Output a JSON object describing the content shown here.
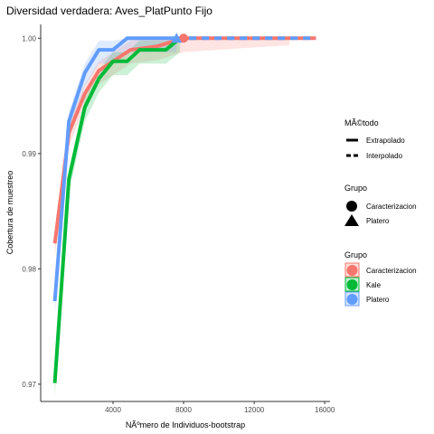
{
  "chart_data": {
    "type": "line",
    "title": "Diversidad verdadera: Aves_PlatPunto Fijo",
    "xlabel": "NÃºmero de Individuos-bootstrap",
    "ylabel": "Cobertura de muestreo",
    "xlim": [
      -100,
      16300
    ],
    "ylim": [
      0.9685,
      1.0012
    ],
    "xticks": [
      4000,
      8000,
      12000,
      16000
    ],
    "xtick_labels": [
      "4000",
      "8000",
      "12000",
      "16000"
    ],
    "yticks": [
      0.97,
      0.98,
      0.99,
      1.0
    ],
    "ytick_labels": [
      "0.97",
      "0.98",
      "0.99",
      "1.00"
    ],
    "grid": false,
    "legend_position": "right",
    "series": [
      {
        "name": "Caracterizacion",
        "color": "#F8766D",
        "ref_size": 8000,
        "ribbon_extra": 6000,
        "marker": "circle",
        "ref_point": [
          8000,
          1.0
        ],
        "interp": [
          [
            700,
            0.9822
          ],
          [
            1500,
            0.9918
          ],
          [
            2400,
            0.9952
          ],
          [
            3200,
            0.9972
          ],
          [
            4000,
            0.998
          ],
          [
            5000,
            0.999
          ],
          [
            6500,
            0.9993
          ],
          [
            8000,
            1.0
          ]
        ],
        "extrap": [
          [
            8000,
            1.0
          ],
          [
            15500,
            1.0
          ]
        ]
      },
      {
        "name": "Kale",
        "color": "#00BA38",
        "ref_size": 7800,
        "ribbon_extra": 0,
        "marker": "none",
        "interp": [
          [
            700,
            0.9701
          ],
          [
            1500,
            0.9878
          ],
          [
            2400,
            0.994
          ],
          [
            3200,
            0.9965
          ],
          [
            4000,
            0.998
          ],
          [
            4800,
            0.998
          ],
          [
            5500,
            0.999
          ],
          [
            7000,
            0.999
          ],
          [
            7800,
            1.0
          ]
        ],
        "extrap": [
          [
            7800,
            1.0
          ]
        ]
      },
      {
        "name": "Platero",
        "color": "#619CFF",
        "ref_size": 7600,
        "ribbon_extra": 0,
        "marker": "triangle",
        "ref_point": [
          7600,
          1.0
        ],
        "interp": [
          [
            700,
            0.9772
          ],
          [
            1500,
            0.9928
          ],
          [
            2400,
            0.997
          ],
          [
            3200,
            0.999
          ],
          [
            4000,
            0.999
          ],
          [
            4800,
            1.0
          ],
          [
            7600,
            1.0
          ]
        ],
        "extrap": [
          [
            7600,
            1.0
          ],
          [
            15500,
            1.0
          ]
        ]
      }
    ]
  },
  "legend": {
    "method_title": "MÃ©todo",
    "method_items": [
      "Extrapolado",
      "Interpolado"
    ],
    "shape_title": "Grupo",
    "shape_items": [
      "Caracterizacion",
      "Platero"
    ],
    "color_title": "Grupo",
    "color_items": [
      "Caracterizacion",
      "Kale",
      "Platero"
    ],
    "colors": [
      "#F8766D",
      "#00BA38",
      "#619CFF"
    ]
  }
}
